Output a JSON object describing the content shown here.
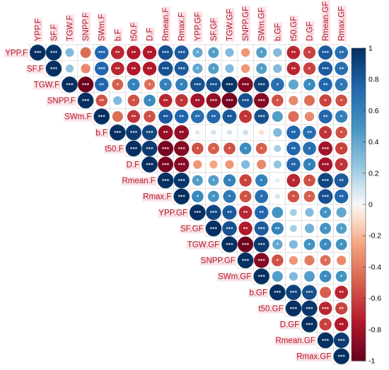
{
  "chart_data": {
    "type": "heatmap",
    "style": "upper-triangle circle correlation matrix",
    "variables": [
      "YPP.F",
      "SF.F",
      "TGW.F",
      "SNPP.F",
      "SWm.F",
      "b.F",
      "t50.F",
      "D.F",
      "Rmean.F",
      "Rmax.F",
      "YPP.GF",
      "SF.GF",
      "TGW.GF",
      "SNPP.GF",
      "SWm.GF",
      "b.GF",
      "t50.GF",
      "D.GF",
      "Rmean.GF",
      "Rmax.GF"
    ],
    "values": [
      [
        1,
        0.98,
        0.3,
        -0.45,
        0.75,
        -0.7,
        -0.75,
        -0.75,
        0.85,
        0.8,
        0.4,
        0.45,
        0.3,
        -0.3,
        0.45,
        0.3,
        -0.7,
        -0.6,
        0.8,
        0.7
      ],
      [
        0,
        1,
        0.25,
        -0.35,
        0.75,
        -0.7,
        -0.75,
        -0.75,
        0.85,
        0.8,
        0.4,
        0.45,
        0.3,
        -0.3,
        0.45,
        0.3,
        -0.7,
        -0.6,
        0.8,
        0.7
      ],
      [
        0,
        0,
        1,
        -0.98,
        0.75,
        -0.5,
        0.6,
        -0.45,
        0.6,
        0.6,
        0.85,
        0.85,
        0.98,
        -0.9,
        0.92,
        0.7,
        0.4,
        0.55,
        0.75,
        0.65
      ],
      [
        0,
        0,
        0,
        1,
        -0.55,
        0.3,
        -0.55,
        0.55,
        -0.7,
        -0.65,
        -0.8,
        -0.85,
        -0.95,
        0.85,
        -0.9,
        -0.55,
        -0.35,
        -0.45,
        -0.6,
        -0.55
      ],
      [
        0,
        0,
        0,
        0,
        1,
        -0.45,
        -0.65,
        -0.55,
        0.8,
        0.75,
        0.7,
        0.75,
        0.8,
        -0.65,
        0.85,
        0.45,
        -0.45,
        -0.35,
        0.75,
        0.6
      ],
      [
        0,
        0,
        0,
        0,
        0,
        1,
        0.95,
        0.9,
        -0.85,
        -0.85,
        0.08,
        0.1,
        0.1,
        0.12,
        -0.1,
        0.3,
        0.75,
        0.7,
        -0.65,
        -0.55
      ],
      [
        0,
        0,
        0,
        0,
        0,
        0,
        1,
        0.95,
        -0.95,
        -0.9,
        -0.55,
        -0.5,
        -0.55,
        0.55,
        -0.5,
        0.2,
        0.75,
        0.7,
        -0.8,
        -0.6
      ],
      [
        0,
        0,
        0,
        0,
        0,
        0,
        0,
        1,
        -0.95,
        -0.9,
        -0.3,
        -0.25,
        -0.3,
        0.3,
        -0.35,
        0.25,
        0.75,
        0.6,
        -0.8,
        -0.65
      ],
      [
        0,
        0,
        0,
        0,
        0,
        0,
        0,
        0,
        1,
        0.97,
        0.45,
        0.45,
        0.6,
        -0.6,
        0.6,
        0.05,
        -0.7,
        -0.55,
        0.9,
        0.8
      ],
      [
        0,
        0,
        0,
        0,
        0,
        0,
        0,
        0,
        0,
        1,
        0.55,
        0.5,
        0.65,
        -0.55,
        0.7,
        0.1,
        -0.55,
        -0.5,
        0.85,
        0.75
      ],
      [
        0,
        0,
        0,
        0,
        0,
        0,
        0,
        0,
        0,
        0,
        1,
        0.9,
        0.8,
        -0.7,
        0.75,
        0.5,
        0.2,
        0.3,
        0.5,
        0.4
      ],
      [
        0,
        0,
        0,
        0,
        0,
        0,
        0,
        0,
        0,
        0,
        0,
        1,
        0.85,
        -0.75,
        0.8,
        0.6,
        0.2,
        0.35,
        0.5,
        0.45
      ],
      [
        0,
        0,
        0,
        0,
        0,
        0,
        0,
        0,
        0,
        0,
        0,
        0,
        1,
        -0.97,
        0.95,
        0.4,
        0.3,
        0.5,
        0.55,
        0.5
      ],
      [
        0,
        0,
        0,
        0,
        0,
        0,
        0,
        0,
        0,
        0,
        0,
        0,
        0,
        1,
        -0.9,
        -0.55,
        -0.3,
        -0.4,
        -0.45,
        -0.35
      ],
      [
        0,
        0,
        0,
        0,
        0,
        0,
        0,
        0,
        0,
        0,
        0,
        0,
        0,
        0,
        1,
        0.45,
        0.3,
        0.45,
        0.55,
        0.5
      ],
      [
        0,
        0,
        0,
        0,
        0,
        0,
        0,
        0,
        0,
        0,
        0,
        0,
        0,
        0,
        0,
        1,
        0.92,
        0.85,
        -0.5,
        -0.7
      ],
      [
        0,
        0,
        0,
        0,
        0,
        0,
        0,
        0,
        0,
        0,
        0,
        0,
        0,
        0,
        0,
        0,
        1,
        0.97,
        -0.7,
        -0.6
      ],
      [
        0,
        0,
        0,
        0,
        0,
        0,
        0,
        0,
        0,
        0,
        0,
        0,
        0,
        0,
        0,
        0,
        0,
        1,
        -0.6,
        -0.75
      ],
      [
        0,
        0,
        0,
        0,
        0,
        0,
        0,
        0,
        0,
        0,
        0,
        0,
        0,
        0,
        0,
        0,
        0,
        0,
        1,
        0.95
      ],
      [
        0,
        0,
        0,
        0,
        0,
        0,
        0,
        0,
        0,
        0,
        0,
        0,
        0,
        0,
        0,
        0,
        0,
        0,
        0,
        1
      ]
    ],
    "stars": [
      [
        "***",
        "***",
        "",
        "",
        "***",
        "**",
        "**",
        "**",
        "***",
        "***",
        "*",
        "*",
        "",
        "",
        "*",
        "",
        "**",
        "*",
        "***",
        "**"
      ],
      [
        "",
        "***",
        "",
        "",
        "***",
        "**",
        "**",
        "**",
        "***",
        "***",
        "*",
        "*",
        "",
        "",
        "*",
        "",
        "**",
        "*",
        "***",
        "**"
      ],
      [
        "",
        "",
        "***",
        "***",
        "**",
        "*",
        "*",
        "*",
        "*",
        "*",
        "***",
        "***",
        "***",
        "***",
        "***",
        "*",
        "",
        "*",
        "**",
        "*"
      ],
      [
        "",
        "",
        "",
        "***",
        "**",
        "",
        "*",
        "*",
        "**",
        "*",
        "**",
        "***",
        "***",
        "***",
        "***",
        "*",
        "",
        "",
        "*",
        "*"
      ],
      [
        "",
        "",
        "",
        "",
        "***",
        "",
        "**",
        "*",
        "**",
        "**",
        "**",
        "**",
        "**",
        "*",
        "***",
        "",
        "",
        "",
        "**",
        "*"
      ],
      [
        "",
        "",
        "",
        "",
        "",
        "***",
        "***",
        "***",
        "**",
        "**",
        "",
        "",
        "",
        "",
        "",
        "",
        "**",
        "**",
        "*",
        "*"
      ],
      [
        "",
        "",
        "",
        "",
        "",
        "",
        "***",
        "***",
        "***",
        "***",
        "*",
        "*",
        "*",
        "*",
        "*",
        "",
        "**",
        "*",
        "***",
        "*"
      ],
      [
        "",
        "",
        "",
        "",
        "",
        "",
        "",
        "***",
        "***",
        "***",
        "",
        "",
        "",
        "",
        "",
        "",
        "**",
        "*",
        "***",
        "*"
      ],
      [
        "",
        "",
        "",
        "",
        "",
        "",
        "",
        "",
        "***",
        "***",
        "*",
        "*",
        "*",
        "*",
        "*",
        "",
        "*",
        "*",
        "***",
        "**"
      ],
      [
        "",
        "",
        "",
        "",
        "",
        "",
        "",
        "",
        "",
        "***",
        "*",
        "*",
        "*",
        "*",
        "*",
        "",
        "*",
        "*",
        "***",
        "**"
      ],
      [
        "",
        "",
        "",
        "",
        "",
        "",
        "",
        "",
        "",
        "",
        "***",
        "***",
        "**",
        "**",
        "**",
        "",
        "",
        "",
        "*",
        ""
      ],
      [
        "",
        "",
        "",
        "",
        "",
        "",
        "",
        "",
        "",
        "",
        "",
        "***",
        "***",
        "**",
        "***",
        "**",
        "",
        "",
        "*",
        "*"
      ],
      [
        "",
        "",
        "",
        "",
        "",
        "",
        "",
        "",
        "",
        "",
        "",
        "",
        "***",
        "***",
        "***",
        "*",
        "",
        "*",
        "*",
        "*"
      ],
      [
        "",
        "",
        "",
        "",
        "",
        "",
        "",
        "",
        "",
        "",
        "",
        "",
        "",
        "***",
        "***",
        "*",
        "",
        "",
        "*",
        ""
      ],
      [
        "",
        "",
        "",
        "",
        "",
        "",
        "",
        "",
        "",
        "",
        "",
        "",
        "",
        "",
        "***",
        "",
        "",
        "",
        "*",
        "*"
      ],
      [
        "",
        "",
        "",
        "",
        "",
        "",
        "",
        "",
        "",
        "",
        "",
        "",
        "",
        "",
        "",
        "***",
        "***",
        "***",
        "",
        "**"
      ],
      [
        "",
        "",
        "",
        "",
        "",
        "",
        "",
        "",
        "",
        "",
        "",
        "",
        "",
        "",
        "",
        "",
        "***",
        "***",
        "***",
        "**"
      ],
      [
        "",
        "",
        "",
        "",
        "",
        "",
        "",
        "",
        "",
        "",
        "",
        "",
        "",
        "",
        "",
        "",
        "",
        "***",
        "*",
        "**"
      ],
      [
        "",
        "",
        "",
        "",
        "",
        "",
        "",
        "",
        "",
        "",
        "",
        "",
        "",
        "",
        "",
        "",
        "",
        "",
        "***",
        "***"
      ],
      [
        "",
        "",
        "",
        "",
        "",
        "",
        "",
        "",
        "",
        "",
        "",
        "",
        "",
        "",
        "",
        "",
        "",
        "",
        "",
        "***"
      ]
    ],
    "colorbar": {
      "range": [
        -1,
        1
      ],
      "ticks": [
        "1",
        "0.8",
        "0.6",
        "0.4",
        "0.2",
        "0",
        "-0.2",
        "-0.4",
        "-0.6",
        "-0.8",
        "-1"
      ]
    },
    "colors": {
      "positive": "#053061",
      "mid": "#f7f7f7",
      "negative": "#67001f",
      "label": "#b2182b"
    }
  }
}
